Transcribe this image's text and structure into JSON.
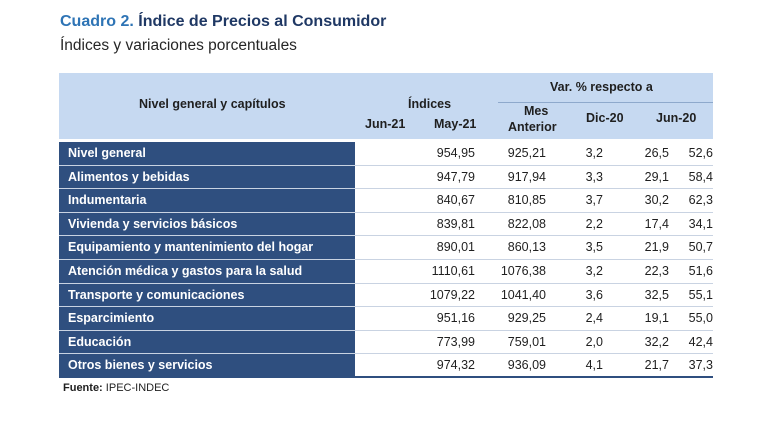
{
  "title": {
    "lead": "Cuadro 2.",
    "text": "Índice de Precios al Consumidor"
  },
  "subtitle": "Índices y variaciones porcentuales",
  "table": {
    "headers": {
      "category": "Nivel general y capítulos",
      "indices_group": "Índices",
      "var_group": "Var. % respecto a",
      "jun21": "Jun-21",
      "may21": "May-21",
      "mes_line1": "Mes",
      "mes_line2": "Anterior",
      "dic20": "Dic-20",
      "jun20": "Jun-20"
    },
    "rows": [
      {
        "name": "Nivel general",
        "jun21": "954,95",
        "may21": "925,21",
        "mes": "3,2",
        "dic20": "26,5",
        "jun20": "52,6"
      },
      {
        "name": "Alimentos y bebidas",
        "jun21": "947,79",
        "may21": "917,94",
        "mes": "3,3",
        "dic20": "29,1",
        "jun20": "58,4"
      },
      {
        "name": "Indumentaria",
        "jun21": "840,67",
        "may21": "810,85",
        "mes": "3,7",
        "dic20": "30,2",
        "jun20": "62,3"
      },
      {
        "name": "Vivienda y servicios básicos",
        "jun21": "839,81",
        "may21": "822,08",
        "mes": "2,2",
        "dic20": "17,4",
        "jun20": "34,1"
      },
      {
        "name": "Equipamiento y mantenimiento del hogar",
        "jun21": "890,01",
        "may21": "860,13",
        "mes": "3,5",
        "dic20": "21,9",
        "jun20": "50,7"
      },
      {
        "name": "Atención médica y gastos para la salud",
        "jun21": "1110,61",
        "may21": "1076,38",
        "mes": "3,2",
        "dic20": "22,3",
        "jun20": "51,6"
      },
      {
        "name": "Transporte y comunicaciones",
        "jun21": "1079,22",
        "may21": "1041,40",
        "mes": "3,6",
        "dic20": "32,5",
        "jun20": "55,1"
      },
      {
        "name": "Esparcimiento",
        "jun21": "951,16",
        "may21": "929,25",
        "mes": "2,4",
        "dic20": "19,1",
        "jun20": "55,0"
      },
      {
        "name": "Educación",
        "jun21": "773,99",
        "may21": "759,01",
        "mes": "2,0",
        "dic20": "32,2",
        "jun20": "42,4"
      },
      {
        "name": "Otros bienes y servicios",
        "jun21": "974,32",
        "may21": "936,09",
        "mes": "4,1",
        "dic20": "21,7",
        "jun20": "37,3"
      }
    ]
  },
  "footnote": {
    "label": "Fuente:",
    "source": "IPEC-INDEC"
  }
}
